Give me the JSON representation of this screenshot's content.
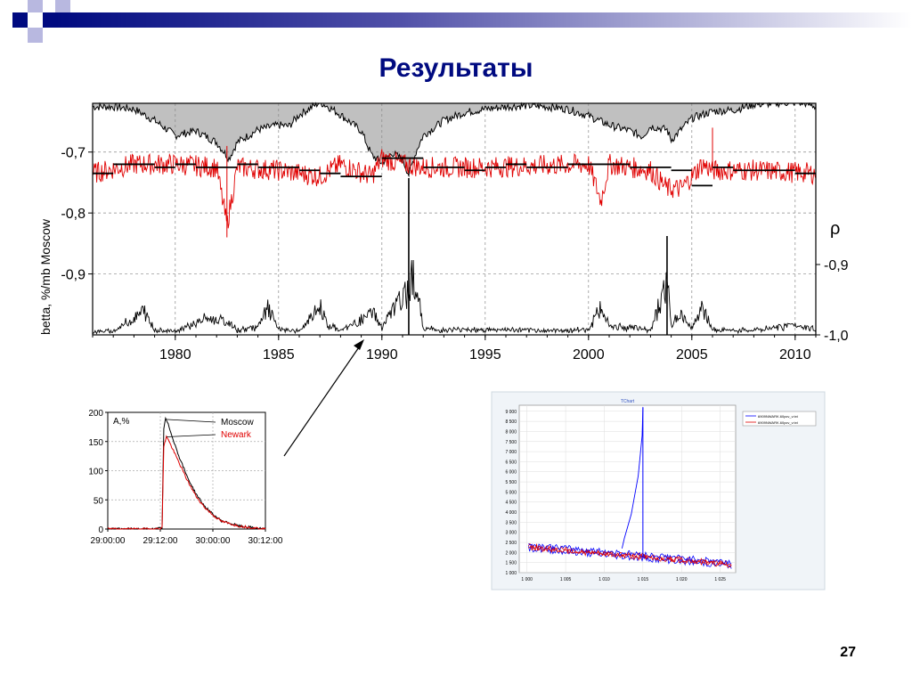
{
  "slide": {
    "title": "Результаты",
    "page_number": "27"
  },
  "colors": {
    "title": "#000a80",
    "header_bar_start": "#000a80",
    "series_red": "#e00000",
    "series_black": "#000000",
    "area_gray": "#c0c0c0",
    "series_blue": "#0000ff"
  },
  "chart_data": [
    {
      "type": "line",
      "ylabel": "betta, %/mb Moscow",
      "xticks": [
        "1980",
        "1985",
        "1990",
        "1995",
        "2000",
        "2005",
        "2010"
      ],
      "xlim": [
        1976.0,
        2011.0
      ],
      "yticks_left": [
        "-0,7",
        "-0,8",
        "-0,9"
      ],
      "ylim_left": [
        -1.0,
        -0.62
      ],
      "y2_symbol": "ρ",
      "yticks_right": [
        "-0,9",
        "-1,0"
      ],
      "grid": true,
      "series": [
        {
          "color": "#000000",
          "kind": "gray-filled top trace",
          "x": [
            1976.0,
            1977.0,
            1978.0,
            1979.0,
            1980.0,
            1981.0,
            1982.0,
            1982.6,
            1983.0,
            1984.0,
            1985.0,
            1985.5,
            1986.0,
            1987.0,
            1987.5,
            1988.0,
            1989.0,
            1989.5,
            1990.0,
            1990.5,
            1991.0,
            1991.3,
            1991.7,
            1992.0,
            1993.0,
            1994.0,
            1995.0,
            1996.0,
            1997.0,
            1998.0,
            1999.0,
            2000.0,
            2001.0,
            2002.0,
            2002.6,
            2003.0,
            2003.8,
            2004.0,
            2005.0,
            2006.0,
            2007.0,
            2008.0,
            2009.0,
            2010.0,
            2010.5,
            2011.0
          ],
          "y": [
            97,
            97,
            95,
            85,
            72,
            76,
            66,
            52,
            66,
            77,
            81,
            80,
            90,
            101,
            96,
            90,
            76,
            55,
            48,
            57,
            51,
            38,
            60,
            72,
            85,
            92,
            95,
            97,
            98,
            97,
            95,
            89,
            81,
            76,
            71,
            80,
            77,
            68,
            87,
            93,
            94,
            99,
            100,
            101,
            100,
            97
          ]
        },
        {
          "color": "#e00000",
          "kind": "daily ratio, noisy, around -0.73",
          "x": [
            1976.0,
            1978.0,
            1980.0,
            1982.0,
            1982.5,
            1983.0,
            1985.0,
            1987.0,
            1988.0,
            1989.5,
            1990.0,
            1991.0,
            1992.0,
            1995.0,
            2000.0,
            2000.6,
            2001.0,
            2003.0,
            2003.8,
            2004.5,
            2005.5,
            2006.0,
            2008.0,
            2011.0
          ],
          "y": [
            -0.735,
            -0.72,
            -0.72,
            -0.725,
            -0.82,
            -0.725,
            -0.73,
            -0.74,
            -0.72,
            -0.74,
            -0.71,
            -0.72,
            -0.725,
            -0.725,
            -0.72,
            -0.78,
            -0.72,
            -0.73,
            -0.76,
            -0.76,
            -0.72,
            -0.73,
            -0.73,
            -0.735
          ]
        },
        {
          "color": "#000000",
          "kind": "yearly mean steps",
          "x": [
            1976.0,
            1977.0,
            1978.0,
            1979.0,
            1980.0,
            1981.0,
            1982.0,
            1983.0,
            1984.0,
            1985.0,
            1986.0,
            1987.0,
            1988.0,
            1989.0,
            1990.0,
            1991.0,
            1992.0,
            1993.0,
            1994.0,
            1995.0,
            1996.0,
            1997.0,
            1998.0,
            1999.0,
            2000.0,
            2001.0,
            2002.0,
            2003.0,
            2004.0,
            2005.0,
            2006.0,
            2007.0,
            2008.0,
            2009.0,
            2010.0
          ],
          "y": [
            -0.735,
            -0.72,
            -0.72,
            -0.725,
            -0.72,
            -0.725,
            -0.725,
            -0.72,
            -0.725,
            -0.725,
            -0.73,
            -0.735,
            -0.74,
            -0.74,
            -0.71,
            -0.71,
            -0.725,
            -0.725,
            -0.73,
            -0.725,
            -0.72,
            -0.725,
            -0.725,
            -0.72,
            -0.72,
            -0.72,
            -0.725,
            -0.725,
            -0.73,
            -0.755,
            -0.725,
            -0.73,
            -0.73,
            -0.73,
            -0.735
          ]
        },
        {
          "color": "#000000",
          "kind": "bottom spike trace",
          "x": [
            1976.0,
            1977.0,
            1978.5,
            1979.0,
            1980.0,
            1981.5,
            1982.5,
            1983.0,
            1984.0,
            1984.5,
            1985.0,
            1986.0,
            1987.0,
            1987.4,
            1988.0,
            1989.0,
            1989.6,
            1990.0,
            1990.6,
            1991.2,
            1991.5,
            1992.0,
            1993.0,
            1994.0,
            1995.0,
            1996.0,
            1997.0,
            1998.0,
            1999.0,
            2000.0,
            2000.6,
            2001.0,
            2002.0,
            2003.0,
            2003.8,
            2004.0,
            2004.5,
            2005.0,
            2005.5,
            2006.0,
            2007.0,
            2008.0,
            2009.0,
            2010.0,
            2011.0
          ],
          "y": [
            2,
            3,
            34,
            5,
            3,
            22,
            18,
            4,
            10,
            38,
            6,
            3,
            40,
            12,
            4,
            20,
            33,
            8,
            40,
            60,
            100,
            8,
            4,
            6,
            5,
            5,
            4,
            4,
            4,
            6,
            40,
            12,
            8,
            5,
            82,
            12,
            30,
            8,
            40,
            5,
            4,
            4,
            8,
            14,
            5
          ]
        }
      ]
    },
    {
      "type": "line",
      "ylabel": "A,%",
      "yticks": [
        "0",
        "50",
        "100",
        "150",
        "200"
      ],
      "ylim": [
        0,
        200
      ],
      "xticks": [
        "29:00:00",
        "29:12:00",
        "30:00:00",
        "30:12:00"
      ],
      "grid": true,
      "legend_position": "top-right",
      "series": [
        {
          "name": "Moscow",
          "color": "#000000",
          "x": [
            0,
            40,
            55,
            62,
            64,
            66,
            70,
            80,
            90,
            100,
            110,
            120,
            130,
            150,
            180
          ],
          "y": [
            0,
            0,
            0,
            2,
            170,
            190,
            175,
            130,
            92,
            62,
            40,
            25,
            14,
            5,
            0
          ]
        },
        {
          "name": "Newark",
          "color": "#e00000",
          "x": [
            0,
            40,
            55,
            62,
            64,
            67,
            70,
            80,
            90,
            100,
            110,
            120,
            130,
            150,
            180
          ],
          "y": [
            0,
            0,
            0,
            2,
            140,
            160,
            150,
            118,
            86,
            58,
            38,
            24,
            13,
            5,
            0
          ]
        }
      ]
    },
    {
      "type": "line",
      "title": "TChart",
      "yticks": [
        "1 000",
        "1 500",
        "2 000",
        "2 500",
        "3 000",
        "3 500",
        "4 000",
        "4 500",
        "5 000",
        "5 500",
        "6 000",
        "6 500",
        "7 000",
        "7 500",
        "8 000",
        "8 500",
        "9 000"
      ],
      "ylim": [
        1000,
        9300
      ],
      "xticks": [
        "1 000",
        "1 005",
        "1 010",
        "1 015",
        "1 020",
        "1 025"
      ],
      "xlim": [
        999,
        1027
      ],
      "grid": true,
      "legend_position": "right",
      "legend": [
        "6909NWARK.60pcv_v.txt",
        "6909NWARK.60pcv_v.txt"
      ],
      "series": [
        {
          "color": "#0000ff",
          "x": [
            1000.2,
            1005,
            1010,
            1012.3,
            1012.6,
            1013.5,
            1014.4,
            1014.9,
            1015.0,
            1015.0,
            1015.1,
            1016,
            1020,
            1026.5
          ],
          "y": [
            2300,
            2050,
            1900,
            2200,
            2700,
            3900,
            5800,
            7800,
            9200,
            1700,
            1800,
            1650,
            1600,
            1450
          ]
        },
        {
          "color": "#e00000",
          "x": [
            1000.2,
            1005,
            1010,
            1015,
            1020,
            1026.5
          ],
          "y": [
            2300,
            2100,
            1950,
            1800,
            1650,
            1500
          ]
        }
      ]
    }
  ]
}
